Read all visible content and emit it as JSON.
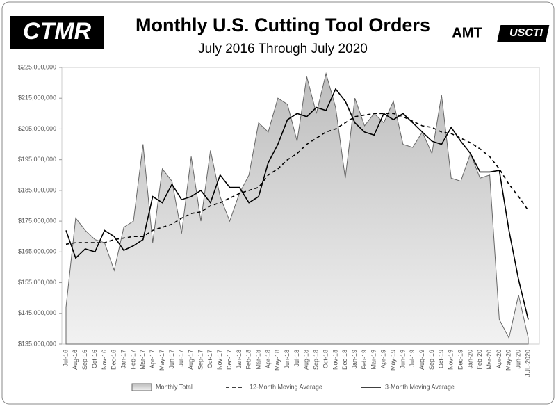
{
  "chart_data": {
    "type": "area",
    "title": "Monthly U.S. Cutting Tool Orders",
    "subtitle": "July 2016 Through July 2020",
    "logos": [
      "CTMR",
      "AMT",
      "USCTI"
    ],
    "categories": [
      "Jul-16",
      "Aug-16",
      "Sep-16",
      "Oct-16",
      "Nov-16",
      "Dec-16",
      "Jan-17",
      "Feb-17",
      "Mar-17",
      "Apr-17",
      "May-17",
      "Jun-17",
      "Jul-17",
      "Aug-17",
      "Sep-17",
      "Oct-17",
      "Nov-17",
      "Dec-17",
      "Jan-18",
      "Feb-18",
      "Mar-18",
      "Apr-18",
      "May-18",
      "Jun-18",
      "Jul-18",
      "Aug-18",
      "Sep-18",
      "Oct-18",
      "Nov-18",
      "Dec-18",
      "Jan-19",
      "Feb-19",
      "Mar-19",
      "Apr-19",
      "May-19",
      "Jun-19",
      "Jul-19",
      "Aug-19",
      "Sep-19",
      "Oct-19",
      "Nov-19",
      "Dec-19",
      "Jan-20",
      "Feb-20",
      "Mar-20",
      "Apr-20",
      "May-20",
      "Jun-20",
      "JUL-2020"
    ],
    "series": [
      {
        "name": "Monthly Total",
        "kind": "area",
        "color": "#d4d4d4",
        "stroke": "#666",
        "values": [
          147000000,
          176000000,
          172000000,
          169000000,
          168000000,
          159000000,
          173000000,
          175000000,
          200000000,
          168000000,
          192000000,
          188000000,
          171000000,
          196000000,
          175000000,
          198000000,
          183000000,
          175000000,
          184000000,
          190000000,
          207000000,
          204000000,
          215000000,
          213000000,
          201000000,
          222000000,
          210000000,
          223000000,
          212000000,
          189000000,
          215000000,
          206000000,
          210000000,
          207000000,
          214000000,
          200000000,
          199000000,
          204000000,
          197000000,
          216000000,
          189000000,
          188000000,
          197000000,
          189000000,
          190000000,
          143000000,
          137000000,
          151000000,
          137000000
        ]
      },
      {
        "name": "12-Month Moving Average",
        "kind": "line",
        "dash": "5,4",
        "color": "#000",
        "values": [
          167500000,
          168000000,
          168000000,
          168000000,
          168000000,
          169000000,
          169500000,
          170000000,
          170000000,
          172000000,
          173000000,
          174000000,
          176000000,
          177500000,
          178000000,
          180000000,
          181000000,
          182500000,
          184000000,
          185000000,
          186000000,
          190000000,
          192000000,
          195000000,
          197000000,
          200000000,
          202000000,
          204000000,
          205000000,
          207000000,
          209000000,
          209500000,
          210000000,
          210000000,
          210000000,
          209000000,
          207500000,
          206000000,
          205500000,
          204000000,
          203500000,
          202000000,
          200500000,
          198500000,
          196000000,
          192000000,
          187000000,
          183000000,
          178500000
        ]
      },
      {
        "name": "3-Month Moving Average",
        "kind": "line",
        "color": "#000",
        "values": [
          172000000,
          163000000,
          166000000,
          165000000,
          172000000,
          170000000,
          165500000,
          167000000,
          169000000,
          183000000,
          181000000,
          187000000,
          182000000,
          183000000,
          185000000,
          181000000,
          190000000,
          186000000,
          186000000,
          181000000,
          183000000,
          194000000,
          200000000,
          208000000,
          210000000,
          209000000,
          212000000,
          211000000,
          218000000,
          214000000,
          207000000,
          204000000,
          203000000,
          210000000,
          208000000,
          210000000,
          207000000,
          204000000,
          201000000,
          200000000,
          205500000,
          201000000,
          197000000,
          191000000,
          191000000,
          191500000,
          172000000,
          156000000,
          143000000
        ]
      }
    ],
    "ylim": [
      135000000,
      225000000
    ],
    "yticks": [
      {
        "value": 135000000,
        "label": "$135,000,000"
      },
      {
        "value": 145000000,
        "label": "$145,000,000"
      },
      {
        "value": 155000000,
        "label": "$155,000,000"
      },
      {
        "value": 165000000,
        "label": "$165,000,000"
      },
      {
        "value": 175000000,
        "label": "$175,000,000"
      },
      {
        "value": 185000000,
        "label": "$185,000,000"
      },
      {
        "value": 195000000,
        "label": "$195,000,000"
      },
      {
        "value": 205000000,
        "label": "$205,000,000"
      },
      {
        "value": 215000000,
        "label": "$215,000,000"
      },
      {
        "value": 225000000,
        "label": "$225,000,000"
      }
    ]
  }
}
